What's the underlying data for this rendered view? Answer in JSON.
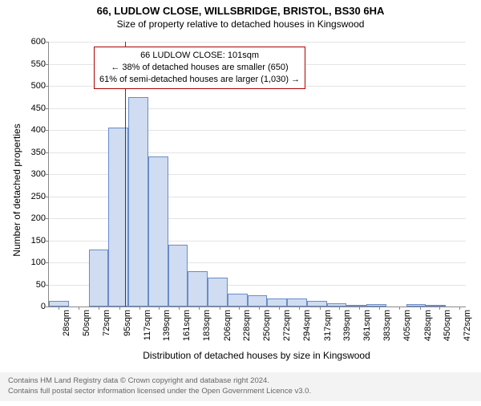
{
  "title": "66, LUDLOW CLOSE, WILLSBRIDGE, BRISTOL, BS30 6HA",
  "subtitle": "Size of property relative to detached houses in Kingswood",
  "yaxis_label": "Number of detached properties",
  "xaxis_label": "Distribution of detached houses by size in Kingswood",
  "info_box": {
    "line1": "66 LUDLOW CLOSE: 101sqm",
    "line2": "← 38% of detached houses are smaller (650)",
    "line3": "61% of semi-detached houses are larger (1,030) →",
    "border_color": "#b00000"
  },
  "reference_line": {
    "x_value": 101,
    "color": "#d00000"
  },
  "chart": {
    "type": "bar",
    "background_color": "#ffffff",
    "grid_color": "#e4e4e4",
    "bar_fill": "#cfdcf1",
    "bar_border": "#6a8cc7",
    "y": {
      "min": 0,
      "max": 600,
      "ticks": [
        0,
        50,
        100,
        150,
        200,
        250,
        300,
        350,
        400,
        450,
        500,
        550,
        600
      ]
    },
    "x": {
      "bin_start": 17,
      "bin_width": 22,
      "labels": [
        "28sqm",
        "50sqm",
        "72sqm",
        "95sqm",
        "117sqm",
        "139sqm",
        "161sqm",
        "183sqm",
        "206sqm",
        "228sqm",
        "250sqm",
        "272sqm",
        "294sqm",
        "317sqm",
        "339sqm",
        "361sqm",
        "383sqm",
        "405sqm",
        "428sqm",
        "450sqm",
        "472sqm"
      ],
      "label_values": [
        28,
        50,
        72,
        95,
        117,
        139,
        161,
        183,
        206,
        228,
        250,
        272,
        294,
        317,
        339,
        361,
        383,
        405,
        428,
        450,
        472
      ]
    },
    "values": [
      12,
      0,
      130,
      405,
      475,
      340,
      140,
      80,
      65,
      30,
      25,
      18,
      18,
      12,
      8,
      3,
      5,
      0,
      5,
      2,
      0
    ]
  },
  "attribution": {
    "line1": "Contains HM Land Registry data © Crown copyright and database right 2024.",
    "line2": "Contains full postal sector information licensed under the Open Government Licence v3.0."
  }
}
